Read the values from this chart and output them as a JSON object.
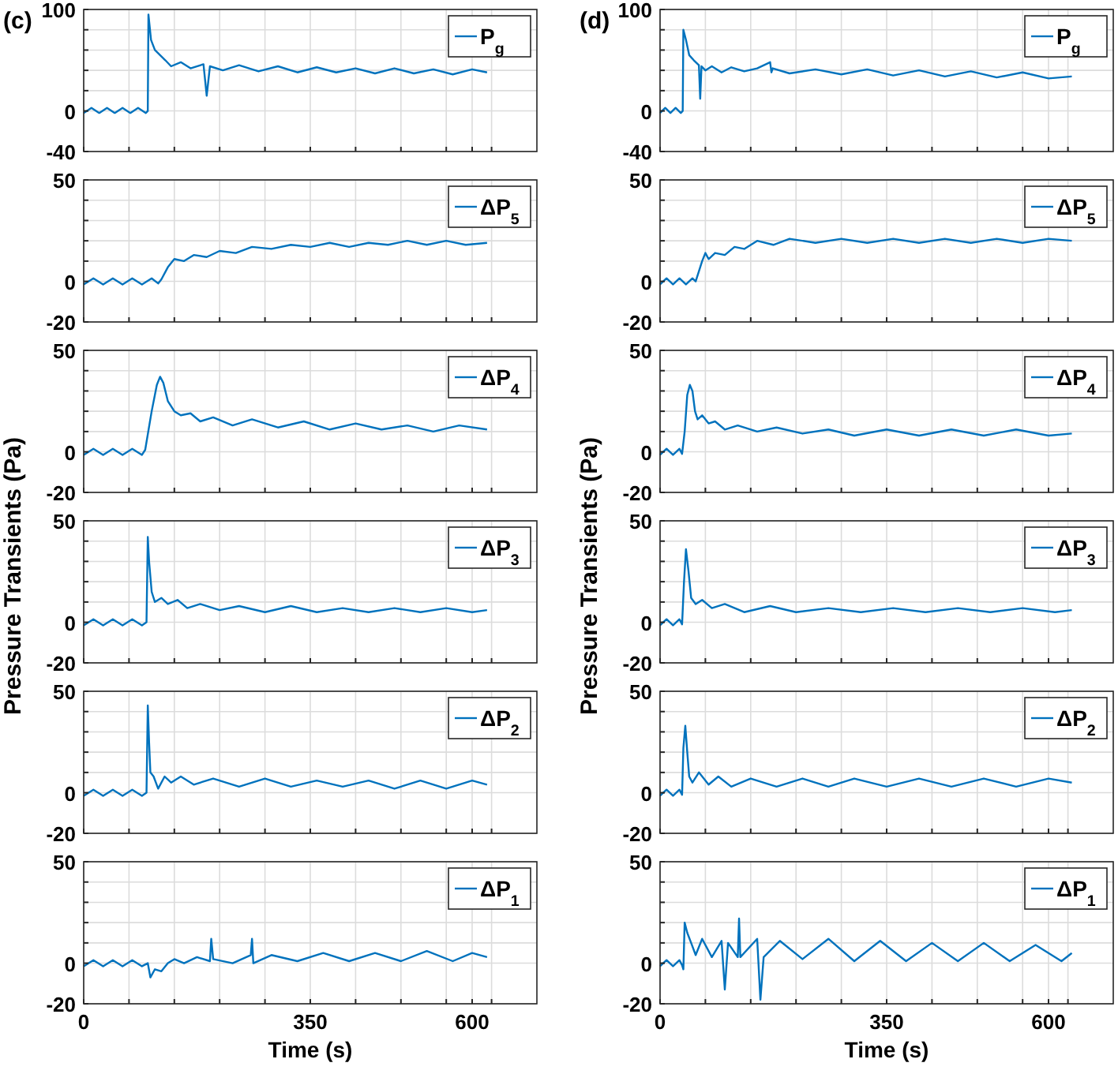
{
  "chart_data": [
    {
      "type": "line",
      "title": "(c)",
      "x": [
        0,
        12,
        24,
        36,
        48,
        60,
        72,
        84,
        96,
        99,
        100,
        104,
        110,
        118,
        126,
        135,
        150,
        165,
        185,
        190,
        195,
        215,
        240,
        270,
        300,
        330,
        360,
        390,
        420,
        450,
        480,
        510,
        540,
        570,
        600,
        623
      ],
      "series": [
        {
          "name": "P$_{g}$",
          "color": "#0072bd",
          "values": [
            -2,
            3,
            -2,
            3,
            -2,
            3,
            -2,
            3,
            -2,
            0,
            95,
            70,
            60,
            55,
            50,
            44,
            48,
            42,
            46,
            15,
            44,
            40,
            45,
            39,
            44,
            38,
            43,
            38,
            42,
            37,
            42,
            37,
            41,
            36,
            41,
            38
          ]
        }
      ],
      "xlim": [
        0,
        700
      ],
      "ylim": [
        -40,
        100
      ],
      "xticks": [
        0,
        {
          "value": 70,
          "label": null
        },
        {
          "value": 140,
          "label": null
        },
        {
          "value": 210,
          "label": null
        },
        {
          "value": 280,
          "label": null
        },
        350,
        {
          "value": 420,
          "label": null
        },
        {
          "value": 490,
          "label": null
        },
        {
          "value": 560,
          "label": null
        },
        600,
        {
          "value": 630,
          "label": null
        }
      ],
      "yticks": [
        -40,
        0,
        {
          "value": 20,
          "label": null
        },
        {
          "value": 40,
          "label": null
        },
        {
          "value": 60,
          "label": null
        },
        {
          "value": 80,
          "label": null
        },
        100
      ],
      "grid": true,
      "legend": "top right",
      "tick_labels": "y"
    },
    {
      "type": "line",
      "title": "(d)",
      "x": [
        0,
        8,
        16,
        24,
        32,
        35,
        36,
        40,
        45,
        52,
        60,
        62,
        64,
        70,
        80,
        95,
        110,
        130,
        150,
        170,
        172,
        174,
        200,
        240,
        280,
        320,
        360,
        400,
        440,
        480,
        520,
        560,
        600,
        636
      ],
      "series": [
        {
          "name": "P$_{g}$",
          "color": "#0072bd",
          "values": [
            -2,
            3,
            -2,
            3,
            -2,
            0,
            80,
            70,
            55,
            50,
            45,
            12,
            44,
            40,
            44,
            38,
            43,
            39,
            42,
            48,
            38,
            42,
            37,
            41,
            36,
            41,
            35,
            40,
            34,
            39,
            33,
            38,
            32,
            34
          ]
        }
      ],
      "xlim": [
        0,
        700
      ],
      "ylim": [
        -40,
        100
      ],
      "xticks": [
        0,
        {
          "value": 70,
          "label": null
        },
        {
          "value": 140,
          "label": null
        },
        {
          "value": 210,
          "label": null
        },
        {
          "value": 280,
          "label": null
        },
        350,
        {
          "value": 420,
          "label": null
        },
        {
          "value": 490,
          "label": null
        },
        {
          "value": 560,
          "label": null
        },
        600,
        {
          "value": 630,
          "label": null
        }
      ],
      "yticks": [
        -40,
        0,
        {
          "value": 20,
          "label": null
        },
        {
          "value": 40,
          "label": null
        },
        {
          "value": 60,
          "label": null
        },
        {
          "value": 80,
          "label": null
        },
        100
      ],
      "grid": true,
      "legend": "top right",
      "tick_labels": "y"
    },
    {
      "type": "line",
      "x": [
        0,
        15,
        30,
        45,
        60,
        75,
        90,
        105,
        115,
        120,
        130,
        140,
        155,
        170,
        190,
        210,
        235,
        260,
        290,
        320,
        350,
        380,
        410,
        440,
        470,
        500,
        530,
        560,
        590,
        623
      ],
      "series": [
        {
          "name": "ΔP$_{5}$",
          "color": "#0072bd",
          "values": [
            -1.5,
            1.5,
            -1.5,
            1.5,
            -1.5,
            1.5,
            -1.5,
            1.5,
            -1,
            1,
            7,
            11,
            10,
            13,
            12,
            15,
            14,
            17,
            16,
            18,
            17,
            19,
            17,
            19,
            18,
            20,
            18,
            20,
            18,
            19
          ]
        }
      ],
      "xlim": [
        0,
        700
      ],
      "ylim": [
        -20,
        50
      ],
      "xticks": [
        0,
        {
          "value": 70,
          "label": null
        },
        {
          "value": 140,
          "label": null
        },
        {
          "value": 210,
          "label": null
        },
        {
          "value": 280,
          "label": null
        },
        350,
        {
          "value": 420,
          "label": null
        },
        {
          "value": 490,
          "label": null
        },
        {
          "value": 560,
          "label": null
        },
        600,
        {
          "value": 630,
          "label": null
        }
      ],
      "yticks": [
        -20,
        0,
        {
          "value": 10,
          "label": null
        },
        {
          "value": 20,
          "label": null
        },
        {
          "value": 30,
          "label": null
        },
        {
          "value": 40,
          "label": null
        },
        50
      ],
      "grid": true,
      "legend": "top right",
      "tick_labels": "y"
    },
    {
      "type": "line",
      "x": [
        0,
        10,
        20,
        30,
        40,
        50,
        55,
        65,
        70,
        75,
        85,
        100,
        115,
        130,
        150,
        175,
        200,
        240,
        280,
        320,
        360,
        400,
        440,
        480,
        520,
        560,
        600,
        636
      ],
      "series": [
        {
          "name": "ΔP$_{5}$",
          "color": "#0072bd",
          "values": [
            -1.5,
            1.5,
            -1.5,
            1.5,
            -1.5,
            1.5,
            0,
            10,
            14,
            11,
            14,
            13,
            17,
            16,
            20,
            18,
            21,
            19,
            21,
            19,
            21,
            19,
            21,
            19,
            21,
            19,
            21,
            20
          ]
        }
      ],
      "xlim": [
        0,
        700
      ],
      "ylim": [
        -20,
        50
      ],
      "xticks": [
        0,
        {
          "value": 70,
          "label": null
        },
        {
          "value": 140,
          "label": null
        },
        {
          "value": 210,
          "label": null
        },
        {
          "value": 280,
          "label": null
        },
        350,
        {
          "value": 420,
          "label": null
        },
        {
          "value": 490,
          "label": null
        },
        {
          "value": 560,
          "label": null
        },
        600,
        {
          "value": 630,
          "label": null
        }
      ],
      "yticks": [
        -20,
        0,
        {
          "value": 10,
          "label": null
        },
        {
          "value": 20,
          "label": null
        },
        {
          "value": 30,
          "label": null
        },
        {
          "value": 40,
          "label": null
        },
        50
      ],
      "grid": true,
      "legend": "top right",
      "tick_labels": "y"
    },
    {
      "type": "line",
      "x": [
        0,
        15,
        30,
        45,
        60,
        75,
        90,
        95,
        105,
        113,
        118,
        123,
        130,
        140,
        150,
        165,
        180,
        200,
        230,
        260,
        300,
        340,
        380,
        420,
        460,
        500,
        540,
        580,
        623
      ],
      "series": [
        {
          "name": "ΔP$_{4}$",
          "color": "#0072bd",
          "values": [
            -1.5,
            1.5,
            -1.5,
            1.5,
            -1.5,
            1.5,
            -1.5,
            1,
            20,
            33,
            37,
            34,
            25,
            20,
            18,
            19,
            15,
            17,
            13,
            16,
            12,
            15,
            11,
            14,
            11,
            13,
            10,
            13,
            11
          ]
        }
      ],
      "xlim": [
        0,
        700
      ],
      "ylim": [
        -20,
        50
      ],
      "xticks": [
        0,
        {
          "value": 70,
          "label": null
        },
        {
          "value": 140,
          "label": null
        },
        {
          "value": 210,
          "label": null
        },
        {
          "value": 280,
          "label": null
        },
        350,
        {
          "value": 420,
          "label": null
        },
        {
          "value": 490,
          "label": null
        },
        {
          "value": 560,
          "label": null
        },
        600,
        {
          "value": 630,
          "label": null
        }
      ],
      "yticks": [
        -20,
        0,
        {
          "value": 10,
          "label": null
        },
        {
          "value": 20,
          "label": null
        },
        {
          "value": 30,
          "label": null
        },
        {
          "value": 40,
          "label": null
        },
        50
      ],
      "grid": true,
      "legend": "top right",
      "tick_labels": "y"
    },
    {
      "type": "line",
      "x": [
        0,
        10,
        20,
        30,
        34,
        38,
        42,
        46,
        50,
        54,
        58,
        65,
        75,
        85,
        100,
        120,
        150,
        180,
        220,
        260,
        300,
        350,
        400,
        450,
        500,
        550,
        600,
        636
      ],
      "series": [
        {
          "name": "ΔP$_{4}$",
          "color": "#0072bd",
          "values": [
            -1.5,
            1.5,
            -1.5,
            1.5,
            -1,
            10,
            28,
            33,
            30,
            20,
            16,
            18,
            14,
            15,
            11,
            13,
            10,
            12,
            9,
            11,
            8,
            11,
            8,
            11,
            8,
            11,
            8,
            9
          ]
        }
      ],
      "xlim": [
        0,
        700
      ],
      "ylim": [
        -20,
        50
      ],
      "xticks": [
        0,
        {
          "value": 70,
          "label": null
        },
        {
          "value": 140,
          "label": null
        },
        {
          "value": 210,
          "label": null
        },
        {
          "value": 280,
          "label": null
        },
        350,
        {
          "value": 420,
          "label": null
        },
        {
          "value": 490,
          "label": null
        },
        {
          "value": 560,
          "label": null
        },
        600,
        {
          "value": 630,
          "label": null
        }
      ],
      "yticks": [
        -20,
        0,
        {
          "value": 10,
          "label": null
        },
        {
          "value": 20,
          "label": null
        },
        {
          "value": 30,
          "label": null
        },
        {
          "value": 40,
          "label": null
        },
        50
      ],
      "grid": true,
      "legend": "top right",
      "tick_labels": "y"
    },
    {
      "type": "line",
      "ylabel": "Pressure Transients (Pa)",
      "x": [
        0,
        15,
        30,
        45,
        60,
        75,
        90,
        97,
        99,
        101,
        105,
        110,
        120,
        130,
        145,
        160,
        180,
        210,
        240,
        280,
        320,
        360,
        400,
        440,
        480,
        520,
        560,
        600,
        623
      ],
      "series": [
        {
          "name": "ΔP$_{3}$",
          "color": "#0072bd",
          "values": [
            -1.5,
            1.5,
            -1.5,
            1.5,
            -1.5,
            1.5,
            -1.5,
            0,
            42,
            30,
            15,
            10,
            12,
            9,
            11,
            7,
            9,
            6,
            8,
            5,
            8,
            5,
            7,
            5,
            7,
            5,
            7,
            5,
            6
          ]
        }
      ],
      "xlim": [
        0,
        700
      ],
      "ylim": [
        -20,
        50
      ],
      "xticks": [
        0,
        {
          "value": 70,
          "label": null
        },
        {
          "value": 140,
          "label": null
        },
        {
          "value": 210,
          "label": null
        },
        {
          "value": 280,
          "label": null
        },
        350,
        {
          "value": 420,
          "label": null
        },
        {
          "value": 490,
          "label": null
        },
        {
          "value": 560,
          "label": null
        },
        600,
        {
          "value": 630,
          "label": null
        }
      ],
      "yticks": [
        -20,
        0,
        {
          "value": 10,
          "label": null
        },
        {
          "value": 20,
          "label": null
        },
        {
          "value": 30,
          "label": null
        },
        {
          "value": 40,
          "label": null
        },
        50
      ],
      "grid": true,
      "legend": "top right",
      "tick_labels": "y"
    },
    {
      "type": "line",
      "ylabel": "Pressure Transients (Pa)",
      "x": [
        0,
        10,
        20,
        30,
        34,
        37,
        40,
        44,
        48,
        55,
        65,
        80,
        100,
        130,
        170,
        210,
        260,
        310,
        360,
        410,
        460,
        510,
        560,
        610,
        636
      ],
      "series": [
        {
          "name": "ΔP$_{3}$",
          "color": "#0072bd",
          "values": [
            -1.5,
            1.5,
            -1.5,
            1.5,
            -1,
            20,
            36,
            25,
            12,
            9,
            11,
            7,
            9,
            5,
            8,
            5,
            7,
            5,
            7,
            5,
            7,
            5,
            7,
            5,
            6
          ]
        }
      ],
      "xlim": [
        0,
        700
      ],
      "ylim": [
        -20,
        50
      ],
      "xticks": [
        0,
        {
          "value": 70,
          "label": null
        },
        {
          "value": 140,
          "label": null
        },
        {
          "value": 210,
          "label": null
        },
        {
          "value": 280,
          "label": null
        },
        350,
        {
          "value": 420,
          "label": null
        },
        {
          "value": 490,
          "label": null
        },
        {
          "value": 560,
          "label": null
        },
        600,
        {
          "value": 630,
          "label": null
        }
      ],
      "yticks": [
        -20,
        0,
        {
          "value": 10,
          "label": null
        },
        {
          "value": 20,
          "label": null
        },
        {
          "value": 30,
          "label": null
        },
        {
          "value": 40,
          "label": null
        },
        50
      ],
      "grid": true,
      "legend": "top right",
      "tick_labels": "y"
    },
    {
      "type": "line",
      "x": [
        0,
        15,
        30,
        45,
        60,
        75,
        90,
        97,
        99,
        101,
        103,
        108,
        115,
        125,
        135,
        150,
        170,
        200,
        240,
        280,
        320,
        360,
        400,
        440,
        480,
        520,
        560,
        600,
        623
      ],
      "series": [
        {
          "name": "ΔP$_{2}$",
          "color": "#0072bd",
          "values": [
            -1.5,
            1.5,
            -1.5,
            1.5,
            -1.5,
            1.5,
            -1.5,
            0,
            43,
            25,
            10,
            8,
            2,
            8,
            5,
            8,
            4,
            7,
            3,
            7,
            3,
            6,
            3,
            6,
            2,
            6,
            2,
            6,
            4
          ]
        }
      ],
      "xlim": [
        0,
        700
      ],
      "ylim": [
        -20,
        50
      ],
      "xticks": [
        0,
        {
          "value": 70,
          "label": null
        },
        {
          "value": 140,
          "label": null
        },
        {
          "value": 210,
          "label": null
        },
        {
          "value": 280,
          "label": null
        },
        350,
        {
          "value": 420,
          "label": null
        },
        {
          "value": 490,
          "label": null
        },
        {
          "value": 560,
          "label": null
        },
        600,
        {
          "value": 630,
          "label": null
        }
      ],
      "yticks": [
        -20,
        0,
        {
          "value": 10,
          "label": null
        },
        {
          "value": 20,
          "label": null
        },
        {
          "value": 30,
          "label": null
        },
        {
          "value": 40,
          "label": null
        },
        50
      ],
      "grid": true,
      "legend": "top right",
      "tick_labels": "y"
    },
    {
      "type": "line",
      "x": [
        0,
        10,
        20,
        30,
        34,
        36,
        39,
        42,
        45,
        50,
        60,
        75,
        90,
        110,
        140,
        180,
        220,
        260,
        300,
        350,
        400,
        450,
        500,
        550,
        600,
        636
      ],
      "series": [
        {
          "name": "ΔP$_{2}$",
          "color": "#0072bd",
          "values": [
            -1.5,
            1.5,
            -1.5,
            1.5,
            -1,
            22,
            33,
            20,
            8,
            5,
            10,
            4,
            8,
            3,
            7,
            3,
            7,
            3,
            7,
            3,
            7,
            3,
            7,
            3,
            7,
            5
          ]
        }
      ],
      "xlim": [
        0,
        700
      ],
      "ylim": [
        -20,
        50
      ],
      "xticks": [
        0,
        {
          "value": 70,
          "label": null
        },
        {
          "value": 140,
          "label": null
        },
        {
          "value": 210,
          "label": null
        },
        {
          "value": 280,
          "label": null
        },
        350,
        {
          "value": 420,
          "label": null
        },
        {
          "value": 490,
          "label": null
        },
        {
          "value": 560,
          "label": null
        },
        600,
        {
          "value": 630,
          "label": null
        }
      ],
      "yticks": [
        -20,
        0,
        {
          "value": 10,
          "label": null
        },
        {
          "value": 20,
          "label": null
        },
        {
          "value": 30,
          "label": null
        },
        {
          "value": 40,
          "label": null
        },
        50
      ],
      "grid": true,
      "legend": "top right",
      "tick_labels": "y"
    },
    {
      "type": "line",
      "xlabel": "Time (s)",
      "x": [
        0,
        15,
        30,
        45,
        60,
        75,
        90,
        99,
        103,
        110,
        120,
        130,
        140,
        155,
        175,
        195,
        197,
        200,
        230,
        258,
        260,
        262,
        290,
        330,
        370,
        410,
        450,
        490,
        530,
        570,
        600,
        623
      ],
      "series": [
        {
          "name": "ΔP$_{1}$",
          "color": "#0072bd",
          "values": [
            -1.5,
            1.5,
            -1.5,
            1.5,
            -1.5,
            1.5,
            -1.5,
            0,
            -7,
            -3,
            -4,
            0,
            2,
            0,
            3,
            1,
            12,
            2,
            0,
            4,
            12,
            0,
            4,
            1,
            5,
            1,
            5,
            1,
            6,
            1,
            5,
            3
          ]
        }
      ],
      "xlim": [
        0,
        700
      ],
      "ylim": [
        -20,
        50
      ],
      "xticks": [
        0,
        {
          "value": 70,
          "label": null
        },
        {
          "value": 140,
          "label": null
        },
        {
          "value": 210,
          "label": null
        },
        {
          "value": 280,
          "label": null
        },
        350,
        {
          "value": 420,
          "label": null
        },
        {
          "value": 490,
          "label": null
        },
        {
          "value": 560,
          "label": null
        },
        600,
        {
          "value": 630,
          "label": null
        }
      ],
      "yticks": [
        -20,
        0,
        {
          "value": 10,
          "label": null
        },
        {
          "value": 20,
          "label": null
        },
        {
          "value": 30,
          "label": null
        },
        {
          "value": 40,
          "label": null
        },
        50
      ],
      "grid": true,
      "legend": "top right"
    },
    {
      "type": "line",
      "xlabel": "Time (s)",
      "x": [
        0,
        10,
        20,
        30,
        34,
        36,
        38,
        42,
        48,
        55,
        65,
        80,
        95,
        100,
        105,
        120,
        122,
        124,
        150,
        155,
        160,
        185,
        220,
        260,
        300,
        340,
        380,
        420,
        460,
        500,
        540,
        580,
        620,
        636
      ],
      "series": [
        {
          "name": "ΔP$_{1}$",
          "color": "#0072bd",
          "values": [
            -1.5,
            1.5,
            -1.5,
            1.5,
            -1,
            -3,
            20,
            15,
            10,
            4,
            12,
            3,
            11,
            -13,
            10,
            3,
            22,
            3,
            12,
            -18,
            3,
            11,
            2,
            12,
            1,
            11,
            1,
            10,
            1,
            10,
            1,
            9,
            1,
            5
          ]
        }
      ],
      "xlim": [
        0,
        700
      ],
      "ylim": [
        -20,
        50
      ],
      "xticks": [
        0,
        {
          "value": 70,
          "label": null
        },
        {
          "value": 140,
          "label": null
        },
        {
          "value": 210,
          "label": null
        },
        {
          "value": 280,
          "label": null
        },
        350,
        {
          "value": 420,
          "label": null
        },
        {
          "value": 490,
          "label": null
        },
        {
          "value": 560,
          "label": null
        },
        600,
        {
          "value": 630,
          "label": null
        }
      ],
      "yticks": [
        -20,
        0,
        {
          "value": 10,
          "label": null
        },
        {
          "value": 20,
          "label": null
        },
        {
          "value": 30,
          "label": null
        },
        {
          "value": 40,
          "label": null
        },
        50
      ],
      "grid": true,
      "legend": "top right"
    }
  ]
}
